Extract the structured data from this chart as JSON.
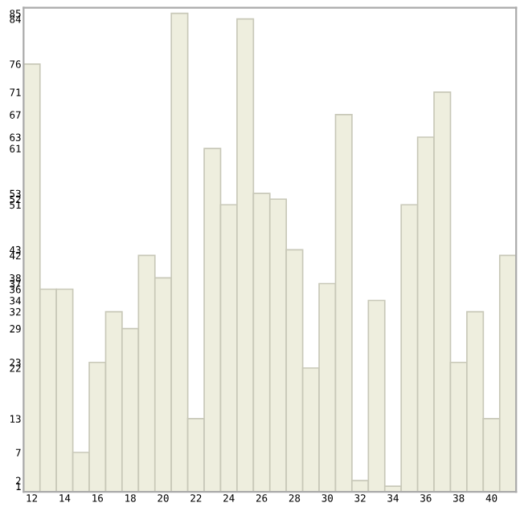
{
  "chart_data": {
    "type": "bar",
    "x": [
      12,
      13,
      14,
      15,
      16,
      17,
      18,
      19,
      20,
      21,
      22,
      23,
      24,
      25,
      26,
      27,
      28,
      29,
      30,
      31,
      32,
      33,
      34,
      35,
      36,
      37,
      38,
      39,
      40,
      41
    ],
    "values": [
      76,
      36,
      36,
      7,
      23,
      32,
      29,
      42,
      38,
      85,
      13,
      61,
      51,
      84,
      53,
      52,
      43,
      22,
      37,
      67,
      2,
      34,
      1,
      51,
      63,
      71,
      23,
      32,
      13,
      42
    ],
    "color": "#eeeede",
    "xlim": [
      11.5,
      41.5
    ],
    "xticks": [
      12,
      14,
      16,
      18,
      20,
      22,
      24,
      26,
      28,
      30,
      32,
      34,
      36,
      38,
      40
    ],
    "ylim": [
      0,
      86
    ],
    "yticks": [
      1,
      2,
      7,
      13,
      22,
      23,
      29,
      32,
      34,
      36,
      37,
      38,
      42,
      43,
      51,
      52,
      53,
      61,
      63,
      67,
      71,
      76,
      84,
      85
    ],
    "grid": false
  }
}
